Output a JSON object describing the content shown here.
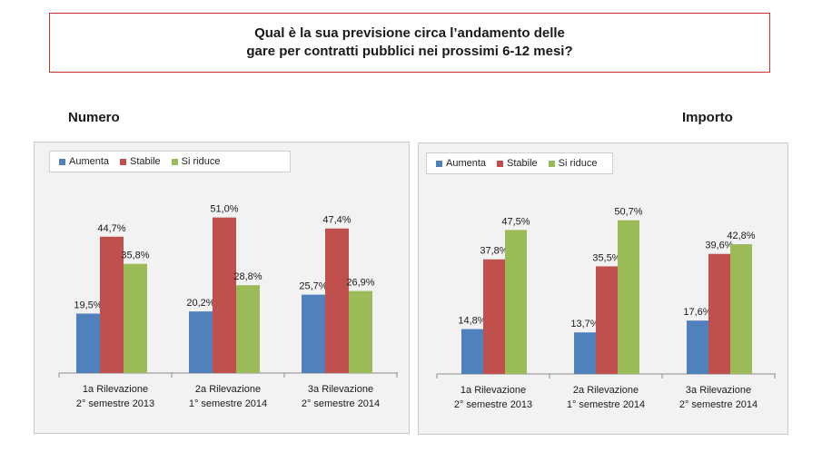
{
  "header": {
    "line1": "Qual è la sua previsione circa l’andamento delle",
    "line2": "gare per contratti pubblici nei prossimi 6-12 mesi?"
  },
  "colors": {
    "aumenta": "#4f81bd",
    "stabile": "#c0504d",
    "si_riduce": "#9bbb59"
  },
  "chart_data": [
    {
      "type": "bar",
      "title": "Numero",
      "legend_position": "top-left",
      "categories": [
        [
          "1a Rilevazione",
          "2° semestre  2013"
        ],
        [
          "2a Rilevazione",
          "1° semestre 2014"
        ],
        [
          "3a Rilevazione",
          "2° semestre 2014"
        ]
      ],
      "series": [
        {
          "name": "Aumenta",
          "values": [
            19.5,
            20.2,
            25.7
          ],
          "labels": [
            "19,5%",
            "20,2%",
            "25,7%"
          ]
        },
        {
          "name": "Stabile",
          "values": [
            44.7,
            51.0,
            47.4
          ],
          "labels": [
            "44,7%",
            "51,0%",
            "47,4%"
          ]
        },
        {
          "name": "Si riduce",
          "values": [
            35.8,
            28.8,
            26.9
          ],
          "labels": [
            "35,8%",
            "28,8%",
            "26,9%"
          ]
        }
      ],
      "ylim": [
        0,
        55
      ],
      "grid": false
    },
    {
      "type": "bar",
      "title": "Importo",
      "legend_position": "top-left",
      "categories": [
        [
          "1a Rilevazione",
          "2° semestre  2013"
        ],
        [
          "2a Rilevazione",
          "1° semestre 2014"
        ],
        [
          "3a Rilevazione",
          "2° semestre 2014"
        ]
      ],
      "series": [
        {
          "name": "Aumenta",
          "values": [
            14.8,
            13.7,
            17.6
          ],
          "labels": [
            "14,8%",
            "13,7%",
            "17,6%"
          ]
        },
        {
          "name": "Stabile",
          "values": [
            37.8,
            35.5,
            39.6
          ],
          "labels": [
            "37,8%",
            "35,5%",
            "39,6%"
          ]
        },
        {
          "name": "Si riduce",
          "values": [
            47.5,
            50.7,
            42.8
          ],
          "labels": [
            "47,5%",
            "50,7%",
            "42,8%"
          ]
        }
      ],
      "ylim": [
        0,
        55
      ],
      "grid": false
    }
  ]
}
